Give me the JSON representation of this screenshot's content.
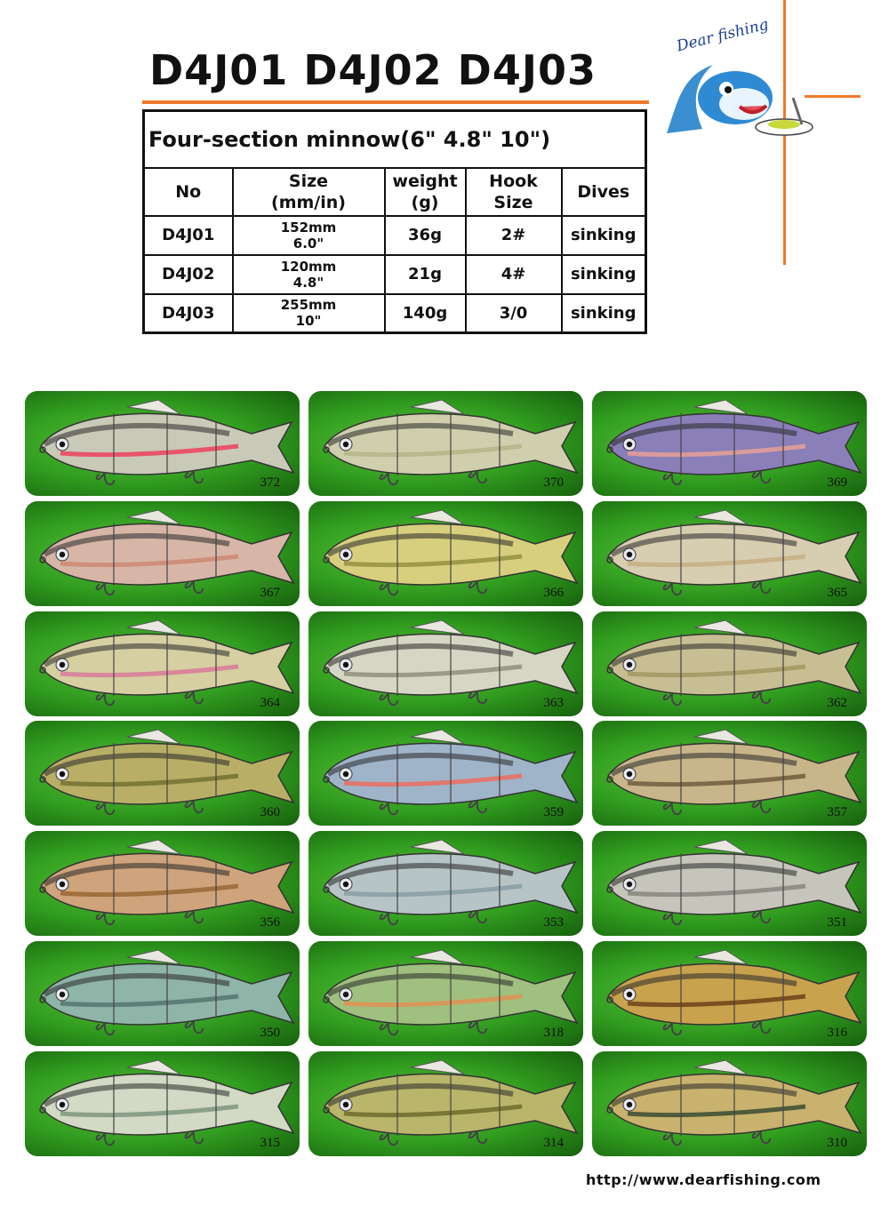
{
  "title": "D4J01 D4J02 D4J03",
  "brand": {
    "logo_text": "Dear fishing"
  },
  "spec_table": {
    "caption": "Four-section minnow(6\" 4.8\" 10\")",
    "headers": [
      {
        "line1": "No",
        "line2": ""
      },
      {
        "line1": "Size",
        "line2": "(mm/in)"
      },
      {
        "line1": "weight",
        "line2": "(g)"
      },
      {
        "line1": "Hook",
        "line2": "Size"
      },
      {
        "line1": "Dives",
        "line2": ""
      }
    ],
    "rows": [
      {
        "no": "D4J01",
        "size_mm": "152mm",
        "size_in": "6.0\"",
        "weight": "36g",
        "hook": "2#",
        "dives": "sinking"
      },
      {
        "no": "D4J02",
        "size_mm": "120mm",
        "size_in": "4.8\"",
        "weight": "21g",
        "hook": "4#",
        "dives": "sinking"
      },
      {
        "no": "D4J03",
        "size_mm": "255mm",
        "size_in": "10\"",
        "weight": "140g",
        "hook": "3/0",
        "dives": "sinking"
      }
    ]
  },
  "lures": [
    {
      "code": "372",
      "body": "#c9c9b8",
      "accent": "#e8556b"
    },
    {
      "code": "370",
      "body": "#cfcfae",
      "accent": "#b9b98e"
    },
    {
      "code": "369",
      "body": "#8a7fb8",
      "accent": "#d89a9a"
    },
    {
      "code": "367",
      "body": "#d7b6a8",
      "accent": "#cf8f7b"
    },
    {
      "code": "366",
      "body": "#d8cf7e",
      "accent": "#9e9a4a"
    },
    {
      "code": "365",
      "body": "#d7cdb0",
      "accent": "#c9b38a"
    },
    {
      "code": "364",
      "body": "#d6cfa2",
      "accent": "#d9879a"
    },
    {
      "code": "363",
      "body": "#d6d6c4",
      "accent": "#9a9a8a"
    },
    {
      "code": "362",
      "body": "#c7bf93",
      "accent": "#a79d6a"
    },
    {
      "code": "360",
      "body": "#b9ae66",
      "accent": "#7d7a3a"
    },
    {
      "code": "359",
      "body": "#9fb4c9",
      "accent": "#e0786f"
    },
    {
      "code": "357",
      "body": "#c8b58a",
      "accent": "#7c6a4a"
    },
    {
      "code": "356",
      "body": "#cfa37b",
      "accent": "#a0703e"
    },
    {
      "code": "353",
      "body": "#b7c4c6",
      "accent": "#8fa3a8"
    },
    {
      "code": "351",
      "body": "#c5c5bb",
      "accent": "#909088"
    },
    {
      "code": "350",
      "body": "#8fb4a8",
      "accent": "#5c7f78"
    },
    {
      "code": "318",
      "body": "#9fc07e",
      "accent": "#d9985a"
    },
    {
      "code": "316",
      "body": "#c9a24e",
      "accent": "#7a5020"
    },
    {
      "code": "315",
      "body": "#d2d9c4",
      "accent": "#8aa08a"
    },
    {
      "code": "314",
      "body": "#b9b56a",
      "accent": "#7a7635"
    },
    {
      "code": "310",
      "body": "#c8b26d",
      "accent": "#4f5a3a"
    }
  ],
  "footer": {
    "url": "http://www.dearfishing.com"
  }
}
